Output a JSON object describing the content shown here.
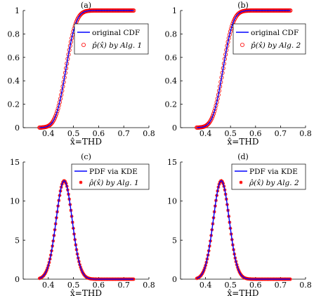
{
  "chart_data": [
    {
      "panel_label": "(a)",
      "type": "line",
      "xlabel": "x̂=THD",
      "xlim": [
        0.3,
        0.8
      ],
      "ylim": [
        0,
        1
      ],
      "xticks": [
        "0.4",
        "0.5",
        "0.6",
        "0.7",
        "0.8"
      ],
      "yticks": [
        "0",
        "0.2",
        "0.4",
        "0.6",
        "0.8",
        "1"
      ],
      "legend_position": "top-right",
      "grid": false,
      "curve": {
        "kind": "cdf",
        "mean": 0.47,
        "sd": 0.032,
        "x_start": 0.365,
        "x_end": 0.74
      },
      "series": [
        {
          "name": "original CDF",
          "style": "line",
          "color": "#0000ff"
        },
        {
          "name": "p̂(x̂) by Alg. 1",
          "style": "circle",
          "color": "#ff0000"
        }
      ]
    },
    {
      "panel_label": "(b)",
      "type": "line",
      "xlabel": "x̂=THD",
      "xlim": [
        0.3,
        0.8
      ],
      "ylim": [
        0,
        1
      ],
      "xticks": [
        "0.4",
        "0.5",
        "0.6",
        "0.7",
        "0.8"
      ],
      "yticks": [
        "0",
        "0.2",
        "0.4",
        "0.6",
        "0.8",
        "1"
      ],
      "legend_position": "top-right",
      "grid": false,
      "curve": {
        "kind": "cdf",
        "mean": 0.47,
        "sd": 0.032,
        "x_start": 0.365,
        "x_end": 0.74
      },
      "series": [
        {
          "name": "original CDF",
          "style": "line",
          "color": "#0000ff"
        },
        {
          "name": "p̂(x̂) by Alg. 2",
          "style": "circle",
          "color": "#ff0000"
        }
      ]
    },
    {
      "panel_label": "(c)",
      "type": "line",
      "xlabel": "x̂=THD",
      "xlim": [
        0.3,
        0.8
      ],
      "ylim": [
        0,
        15
      ],
      "xticks": [
        "0.4",
        "0.5",
        "0.6",
        "0.7",
        "0.8"
      ],
      "yticks": [
        "0",
        "5",
        "10",
        "15"
      ],
      "legend_position": "top-right",
      "grid": false,
      "curve": {
        "kind": "pdf",
        "mean": 0.463,
        "sd": 0.0317,
        "x_start": 0.365,
        "x_end": 0.74,
        "peak": 12.6
      },
      "series": [
        {
          "name": "PDF via KDE",
          "style": "line",
          "color": "#0000ff"
        },
        {
          "name": "ρ̂(x̂) by Alg. 1",
          "style": "star",
          "color": "#ff0000"
        }
      ]
    },
    {
      "panel_label": "(d)",
      "type": "line",
      "xlabel": "x̂=THD",
      "xlim": [
        0.3,
        0.8
      ],
      "ylim": [
        0,
        15
      ],
      "xticks": [
        "0.4",
        "0.5",
        "0.6",
        "0.7",
        "0.8"
      ],
      "yticks": [
        "0",
        "5",
        "10",
        "15"
      ],
      "legend_position": "top-right",
      "grid": false,
      "curve": {
        "kind": "pdf",
        "mean": 0.463,
        "sd": 0.0317,
        "x_start": 0.365,
        "x_end": 0.74,
        "peak": 12.6
      },
      "series": [
        {
          "name": "PDF via KDE",
          "style": "line",
          "color": "#0000ff"
        },
        {
          "name": "ρ̂(x̂) by Alg. 2",
          "style": "star",
          "color": "#ff0000"
        }
      ]
    }
  ]
}
